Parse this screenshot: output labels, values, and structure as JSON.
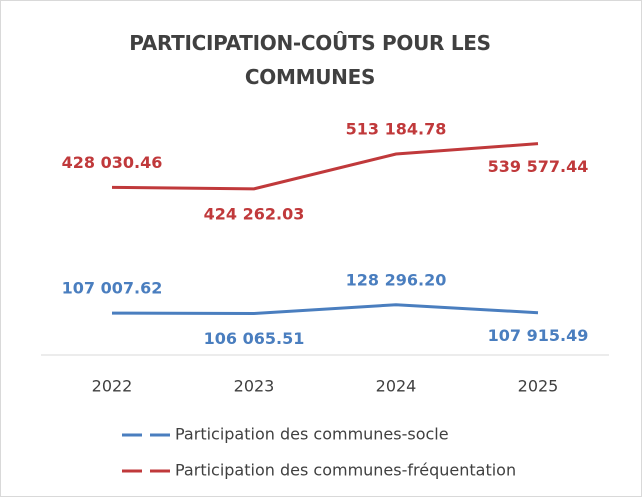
{
  "chart_data": {
    "type": "line",
    "title": "PARTICIPATION-COÛTS POUR LES COMMUNES",
    "categories": [
      "2022",
      "2023",
      "2024",
      "2025"
    ],
    "series": [
      {
        "name": "Participation des communes-socle",
        "color": "#4a7ebf",
        "values": [
          107007.62,
          106065.51,
          128296.2,
          107915.49
        ],
        "value_labels": [
          "107 007.62",
          "106 065.51",
          "128 296.20",
          "107 915.49"
        ]
      },
      {
        "name": "Participation des communes-fréquentation",
        "color": "#c0393b",
        "values": [
          428030.46,
          424262.03,
          513184.78,
          539577.44
        ],
        "value_labels": [
          "428 030.46",
          "424 262.03",
          "513 184.78",
          "539 577.44"
        ]
      }
    ],
    "ylim": [
      0,
      600000
    ]
  }
}
